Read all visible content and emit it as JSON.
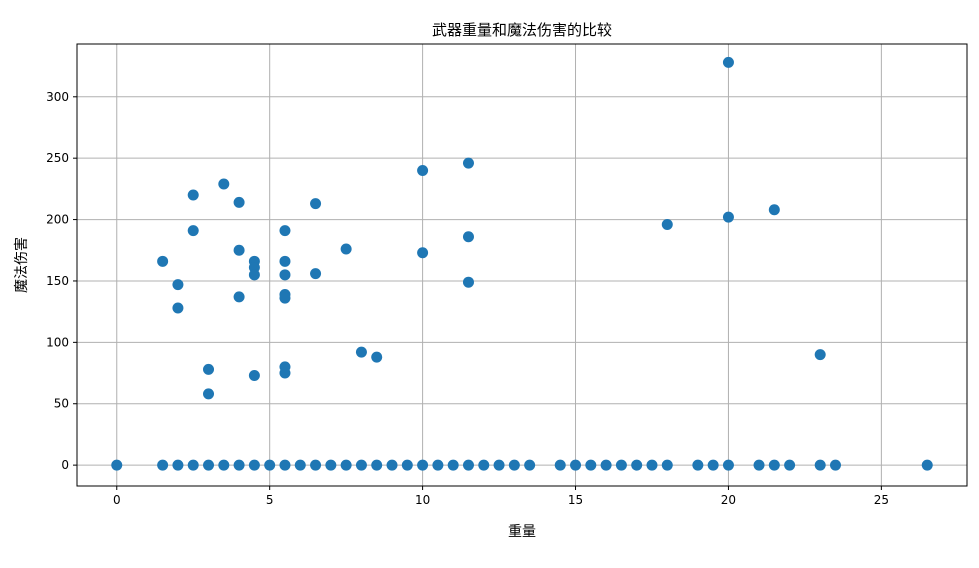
{
  "chart_data": {
    "type": "scatter",
    "title": "武器重量和魔法伤害的比较",
    "xlabel": "重量",
    "ylabel": "魔法伤害",
    "xlim": [
      -1.3,
      27.8
    ],
    "ylim": [
      -17,
      343
    ],
    "xticks": [
      0,
      5,
      10,
      15,
      20,
      25
    ],
    "yticks": [
      0,
      50,
      100,
      150,
      200,
      250,
      300
    ],
    "grid": true,
    "marker_color": "#1f77b4",
    "points": [
      [
        0,
        0
      ],
      [
        1.5,
        0
      ],
      [
        2,
        0
      ],
      [
        2.5,
        0
      ],
      [
        3,
        0
      ],
      [
        3.5,
        0
      ],
      [
        4,
        0
      ],
      [
        4.5,
        0
      ],
      [
        5,
        0
      ],
      [
        5.5,
        0
      ],
      [
        6,
        0
      ],
      [
        6.5,
        0
      ],
      [
        7,
        0
      ],
      [
        7.5,
        0
      ],
      [
        8,
        0
      ],
      [
        8.5,
        0
      ],
      [
        9,
        0
      ],
      [
        9.5,
        0
      ],
      [
        10,
        0
      ],
      [
        10.5,
        0
      ],
      [
        11,
        0
      ],
      [
        11.5,
        0
      ],
      [
        12,
        0
      ],
      [
        12.5,
        0
      ],
      [
        13,
        0
      ],
      [
        13.5,
        0
      ],
      [
        14.5,
        0
      ],
      [
        15,
        0
      ],
      [
        15.5,
        0
      ],
      [
        16,
        0
      ],
      [
        16.5,
        0
      ],
      [
        17,
        0
      ],
      [
        17.5,
        0
      ],
      [
        18,
        0
      ],
      [
        19,
        0
      ],
      [
        19.5,
        0
      ],
      [
        20,
        0
      ],
      [
        21,
        0
      ],
      [
        21.5,
        0
      ],
      [
        22,
        0
      ],
      [
        23,
        0
      ],
      [
        23.5,
        0
      ],
      [
        26.5,
        0
      ],
      [
        3.5,
        229
      ],
      [
        2.5,
        220
      ],
      [
        4,
        214
      ],
      [
        6.5,
        213
      ],
      [
        2.5,
        191
      ],
      [
        5.5,
        191
      ],
      [
        4,
        175
      ],
      [
        7.5,
        176
      ],
      [
        1.5,
        166
      ],
      [
        4.5,
        166
      ],
      [
        4.5,
        161
      ],
      [
        4.5,
        155
      ],
      [
        5.5,
        166
      ],
      [
        5.5,
        155
      ],
      [
        6.5,
        156
      ],
      [
        2,
        147
      ],
      [
        2,
        128
      ],
      [
        4,
        137
      ],
      [
        5.5,
        139
      ],
      [
        5.5,
        136
      ],
      [
        8,
        92
      ],
      [
        8.5,
        88
      ],
      [
        3,
        78
      ],
      [
        4.5,
        73
      ],
      [
        5.5,
        80
      ],
      [
        5.5,
        75
      ],
      [
        3,
        58
      ],
      [
        10,
        240
      ],
      [
        10,
        173
      ],
      [
        11.5,
        246
      ],
      [
        11.5,
        186
      ],
      [
        11.5,
        149
      ],
      [
        18,
        196
      ],
      [
        20,
        328
      ],
      [
        20,
        202
      ],
      [
        21.5,
        208
      ],
      [
        23,
        90
      ]
    ]
  }
}
